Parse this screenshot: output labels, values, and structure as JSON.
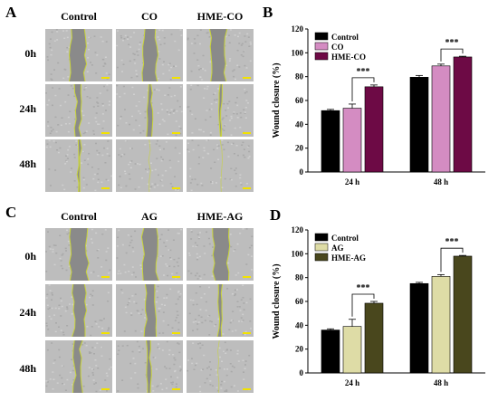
{
  "panels": {
    "A": "A",
    "B": "B",
    "C": "C",
    "D": "D"
  },
  "figure_top": {
    "columns": [
      "Control",
      "CO",
      "HME-CO"
    ],
    "rows": [
      "0h",
      "24h",
      "48h"
    ]
  },
  "figure_bottom": {
    "columns": [
      "Control",
      "AG",
      "HME-AG"
    ],
    "rows": [
      "0h",
      "24h",
      "48h"
    ]
  },
  "colors": {
    "tissue": "#bdbdbd",
    "gap": "#8a8a8a",
    "edge": "#c9d43a",
    "scalebar": "#f2e200"
  },
  "chart_data": [
    {
      "type": "bar",
      "panel": "B",
      "categories": [
        "24 h",
        "48 h"
      ],
      "series": [
        {
          "name": "Control",
          "color": "#000000",
          "values": [
            51.5,
            79.5
          ],
          "errors": [
            1.0,
            1.5
          ]
        },
        {
          "name": "CO",
          "color": "#d48cc2",
          "values": [
            53.5,
            89.0
          ],
          "errors": [
            3.5,
            1.5
          ]
        },
        {
          "name": "HME-CO",
          "color": "#6d0a45",
          "values": [
            71.5,
            96.5
          ],
          "errors": [
            1.5,
            0.6
          ]
        }
      ],
      "ylabel": "Wound closure (%)",
      "ylim": [
        0,
        120
      ],
      "yticks": [
        "0",
        "20",
        "40",
        "60",
        "80",
        "100",
        "120"
      ],
      "annotations": [
        "***",
        "***"
      ],
      "legend": "top-left"
    },
    {
      "type": "bar",
      "panel": "D",
      "categories": [
        "24 h",
        "48 h"
      ],
      "series": [
        {
          "name": "Control",
          "color": "#000000",
          "values": [
            36.0,
            75.0
          ],
          "errors": [
            1.0,
            1.0
          ]
        },
        {
          "name": "AG",
          "color": "#dedca6",
          "values": [
            39.0,
            81.0
          ],
          "errors": [
            6.0,
            1.5
          ]
        },
        {
          "name": "HME-AG",
          "color": "#49471d",
          "values": [
            58.5,
            98.0
          ],
          "errors": [
            1.5,
            0.6
          ]
        }
      ],
      "ylabel": "Wound closure (%)",
      "ylim": [
        0,
        120
      ],
      "yticks": [
        "0",
        "20",
        "40",
        "60",
        "80",
        "100",
        "120"
      ],
      "annotations": [
        "***",
        "***"
      ],
      "legend": "top-left"
    }
  ]
}
